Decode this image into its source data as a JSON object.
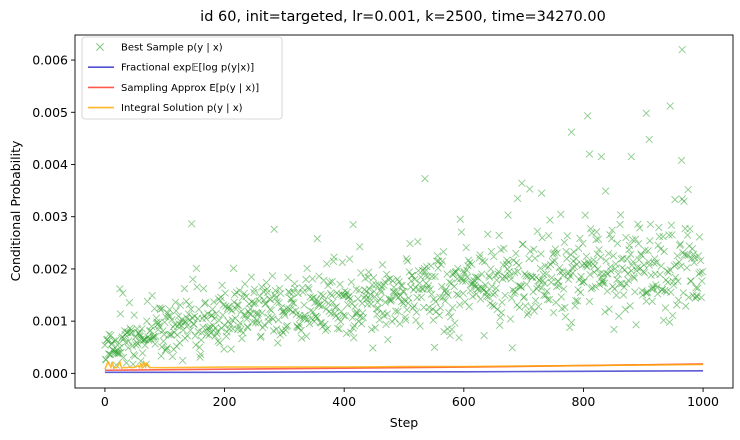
{
  "chart_data": {
    "type": "scatter",
    "title": "id 60, init=targeted, lr=0.001, k=2500, time=34270.00",
    "xlabel": "Step",
    "ylabel": "Conditional Probability",
    "xlim": [
      -50,
      1050
    ],
    "ylim": [
      -0.00028,
      0.00648
    ],
    "xticks": [
      0,
      200,
      400,
      600,
      800,
      1000
    ],
    "xtick_labels": [
      "0",
      "200",
      "400",
      "600",
      "800",
      "1000"
    ],
    "yticks": [
      0,
      0.001,
      0.002,
      0.003,
      0.004,
      0.005,
      0.006
    ],
    "ytick_labels": [
      "0.000",
      "0.001",
      "0.002",
      "0.003",
      "0.004",
      "0.005",
      "0.006"
    ],
    "grid": false,
    "legend_position": "upper-left",
    "series": [
      {
        "name": "Best Sample p(y | x)",
        "kind": "scatter",
        "marker": "x",
        "color": "#2ca02c",
        "description": "one point per step 0-1000; trend rises from ~0.0005 at step 0 to ~0.0021 at step 1000 with wide scatter",
        "trend_x": [
          0,
          100,
          200,
          300,
          400,
          500,
          600,
          700,
          800,
          900,
          1000
        ],
        "trend_y": [
          0.00045,
          0.00082,
          0.00105,
          0.00122,
          0.00138,
          0.00152,
          0.00166,
          0.00178,
          0.0019,
          0.002,
          0.0021
        ],
        "outliers_x": [
          25,
          355,
          415,
          535,
          690,
          730,
          780,
          810,
          830,
          880,
          905,
          910,
          945,
          965,
          975
        ],
        "outliers_y": [
          0.00162,
          0.00258,
          0.00285,
          0.00373,
          0.00335,
          0.00345,
          0.00462,
          0.0042,
          0.00415,
          0.00415,
          0.00498,
          0.00448,
          0.00512,
          0.0062,
          0.00352
        ],
        "n_points": 1000
      },
      {
        "name": "Fractional exp𝔼[log p(y|x)]",
        "kind": "line",
        "color": "#3333cc",
        "x": [
          0,
          200,
          400,
          600,
          800,
          1000
        ],
        "y": [
          2e-05,
          2e-05,
          3e-05,
          3e-05,
          4e-05,
          5e-05
        ]
      },
      {
        "name": "Sampling Approx E[p(y | x)]",
        "kind": "line",
        "color": "#ff3d2e",
        "x": [
          0,
          200,
          400,
          600,
          800,
          1000
        ],
        "y": [
          6e-05,
          8e-05,
          0.0001,
          0.00012,
          0.00015,
          0.00018
        ]
      },
      {
        "name": "Integral Solution p(y | x)",
        "kind": "line",
        "color": "#ffaa00",
        "x": [
          0,
          5,
          10,
          12,
          15,
          17,
          20,
          25,
          28,
          30,
          35,
          38,
          40,
          45,
          50,
          55,
          58,
          60,
          62,
          65,
          68,
          70,
          75,
          80,
          100,
          200,
          300,
          400,
          500,
          600,
          700,
          800,
          900,
          1000
        ],
        "y": [
          8e-05,
          0.00022,
          0.00012,
          0.00022,
          0.0001,
          0.00011,
          0.00011,
          0.00022,
          0.0001,
          0.00011,
          0.00011,
          0.00011,
          0.00012,
          0.00011,
          0.00012,
          0.00015,
          0.00011,
          0.0002,
          0.00011,
          0.00021,
          0.00012,
          0.00019,
          0.00011,
          0.00011,
          0.00011,
          0.00012,
          0.00012,
          0.00012,
          0.00013,
          0.00013,
          0.00014,
          0.00015,
          0.00016,
          0.00017
        ]
      }
    ]
  }
}
